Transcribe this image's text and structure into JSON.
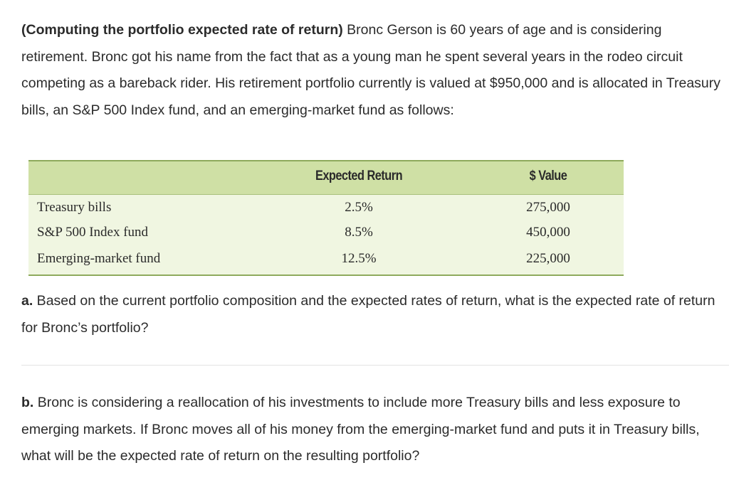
{
  "intro": {
    "heading": "(Computing the portfolio expected rate of return)",
    "body": " Bronc Gerson is 60 years of age and is considering retirement. Bronc got his name from the fact that as a young man he spent several years in the rodeo circuit competing as a bareback rider. His retirement portfolio currently is valued at $950,000 and is allocated in Treasury bills, an S&P 500 Index fund, and an emerging-market fund as follows:"
  },
  "table": {
    "headers": {
      "expected_return": "Expected Return",
      "value": "$ Value"
    },
    "rows": [
      {
        "name": "Treasury bills",
        "expected_return": "2.5%",
        "value": "275,000"
      },
      {
        "name": "S&P 500 Index fund",
        "expected_return": "8.5%",
        "value": "450,000"
      },
      {
        "name": "Emerging-market fund",
        "expected_return": "12.5%",
        "value": "225,000"
      }
    ]
  },
  "question_a": {
    "label": "a.",
    "text": " Based on the current portfolio composition and the expected rates of return, what is the expected rate of return for Bronc’s portfolio?"
  },
  "question_b": {
    "label": "b.",
    "text": " Bronc is considering a reallocation of his investments to include more Treasury bills and less exposure to emerging markets. If Bronc moves all of his money from the emerging-market fund and puts it in Treasury bills, what will be the expected rate of return on the resulting portfolio?"
  }
}
